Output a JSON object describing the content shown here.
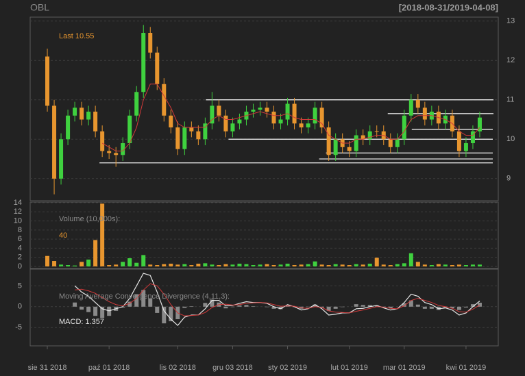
{
  "chart_data": {
    "type": "candlestick",
    "title": "OBL",
    "subtitle": "[2018-08-31/2019-04-08]",
    "annotation": "Last 10.55",
    "categories": [
      "sie 31 2018",
      null,
      null,
      null,
      null,
      null,
      null,
      null,
      null,
      "paź 01 2018",
      null,
      null,
      null,
      null,
      null,
      null,
      null,
      null,
      null,
      "lis 02 2018",
      null,
      null,
      null,
      null,
      null,
      null,
      null,
      "gru 03 2018",
      null,
      null,
      null,
      null,
      null,
      null,
      null,
      "sty 02 2019",
      null,
      null,
      null,
      null,
      null,
      null,
      null,
      null,
      "lut 01 2019",
      null,
      null,
      null,
      null,
      null,
      null,
      null,
      "mar 01 2019",
      null,
      null,
      null,
      null,
      null,
      null,
      null,
      null,
      "kwi 01 2019",
      null,
      null
    ],
    "xlim": [
      -2.5,
      65.7
    ],
    "open": [
      12.1,
      10.85,
      9.0,
      10.0,
      10.6,
      10.8,
      10.5,
      10.7,
      10.2,
      9.7,
      9.65,
      9.6,
      9.9,
      10.6,
      11.2,
      12.7,
      12.2,
      11.4,
      10.6,
      10.3,
      9.75,
      10.3,
      10.2,
      10.0,
      10.4,
      10.85,
      10.6,
      10.2,
      10.4,
      10.5,
      10.7,
      10.75,
      10.8,
      10.7,
      10.4,
      10.5,
      10.9,
      10.4,
      10.3,
      10.4,
      10.8,
      10.3,
      9.6,
      10.0,
      9.8,
      9.7,
      10.1,
      10.0,
      10.2,
      10.2,
      10.0,
      9.8,
      10.0,
      10.6,
      11.0,
      10.8,
      10.5,
      10.7,
      10.4,
      10.6,
      10.2,
      9.7,
      9.9,
      10.2
    ],
    "high": [
      12.3,
      11.0,
      10.15,
      10.75,
      10.95,
      10.95,
      10.85,
      10.85,
      10.35,
      9.85,
      9.8,
      10.05,
      10.75,
      11.35,
      12.9,
      12.85,
      12.35,
      11.55,
      10.75,
      10.45,
      10.45,
      10.45,
      10.35,
      10.55,
      11.2,
      11.0,
      10.75,
      10.55,
      10.65,
      10.85,
      10.9,
      10.95,
      10.95,
      10.85,
      10.65,
      11.05,
      11.05,
      10.55,
      10.55,
      10.95,
      10.95,
      10.45,
      10.15,
      10.15,
      9.95,
      10.25,
      10.25,
      10.35,
      10.35,
      10.35,
      10.15,
      10.15,
      10.75,
      11.15,
      11.15,
      10.95,
      10.85,
      10.85,
      10.75,
      10.75,
      10.35,
      10.05,
      10.35,
      10.7
    ],
    "low": [
      10.7,
      8.6,
      8.85,
      9.85,
      10.45,
      10.35,
      10.35,
      10.05,
      9.55,
      9.5,
      9.3,
      9.45,
      9.75,
      10.45,
      11.05,
      12.05,
      11.25,
      10.45,
      10.15,
      9.6,
      9.6,
      10.05,
      9.85,
      9.85,
      10.25,
      10.45,
      10.05,
      10.05,
      10.25,
      10.35,
      10.55,
      10.6,
      10.55,
      10.25,
      10.25,
      10.35,
      10.25,
      10.15,
      10.15,
      10.25,
      10.15,
      9.45,
      9.45,
      9.65,
      9.55,
      9.55,
      9.85,
      9.85,
      10.05,
      9.85,
      9.65,
      9.65,
      9.85,
      10.45,
      10.65,
      10.35,
      10.35,
      10.25,
      10.25,
      10.05,
      9.55,
      9.55,
      9.75,
      10.05
    ],
    "close": [
      10.85,
      9.0,
      10.0,
      10.6,
      10.8,
      10.5,
      10.7,
      10.2,
      9.7,
      9.65,
      9.6,
      9.9,
      10.6,
      11.2,
      12.7,
      12.2,
      11.4,
      10.6,
      10.3,
      9.75,
      10.3,
      10.2,
      10.0,
      10.4,
      10.85,
      10.6,
      10.2,
      10.4,
      10.5,
      10.7,
      10.75,
      10.8,
      10.7,
      10.4,
      10.5,
      10.9,
      10.4,
      10.3,
      10.4,
      10.8,
      10.3,
      9.6,
      10.0,
      9.8,
      9.7,
      10.1,
      10.0,
      10.2,
      10.2,
      10.0,
      9.8,
      10.0,
      10.6,
      11.0,
      10.8,
      10.5,
      10.7,
      10.4,
      10.6,
      10.2,
      9.7,
      9.9,
      10.2,
      10.55
    ],
    "up_color": "#3fd13f",
    "down_color": "#e8962f",
    "ylim": [
      8.44,
      13.1
    ],
    "yticks": [
      9,
      10,
      11,
      12,
      13
    ],
    "grid": true,
    "ma": {
      "color": "#d23a3a",
      "values": [
        null,
        null,
        null,
        null,
        null,
        null,
        null,
        null,
        9.9,
        9.8,
        9.7,
        9.7,
        9.9,
        10.3,
        11.0,
        11.4,
        11.4,
        11.1,
        10.8,
        10.4,
        10.3,
        10.3,
        10.3,
        10.3,
        10.5,
        10.6,
        10.5,
        10.5,
        10.55,
        10.6,
        10.65,
        10.7,
        10.65,
        10.6,
        10.6,
        10.65,
        10.55,
        10.5,
        10.5,
        10.5,
        10.4,
        10.1,
        10.0,
        9.9,
        9.9,
        10.0,
        10.0,
        10.05,
        10.1,
        10.1,
        10.0,
        10.0,
        10.2,
        10.5,
        10.6,
        10.6,
        10.6,
        10.55,
        10.5,
        10.4,
        10.2,
        10.1,
        10.1,
        10.3
      ]
    },
    "lines": [
      {
        "y": 11.0,
        "x": [
          23.1,
          65.0
        ]
      },
      {
        "y": 10.65,
        "x": [
          49.6,
          65.0
        ]
      },
      {
        "y": 10.25,
        "x": [
          53.1,
          64.9
        ]
      },
      {
        "y": 10.0,
        "x": [
          26.4,
          64.9
        ]
      },
      {
        "y": 9.65,
        "x": [
          40.6,
          64.9
        ]
      },
      {
        "y": 9.5,
        "x": [
          39.6,
          64.9
        ]
      },
      {
        "y": 9.4,
        "x": [
          7.6,
          64.9
        ]
      }
    ],
    "volume": {
      "title": "Volume (10,000s):",
      "last_label": "40",
      "values": [
        2.3,
        1.2,
        0.4,
        0.3,
        0.2,
        1.0,
        1.5,
        5.8,
        13.8,
        0.3,
        0.4,
        1.0,
        1.8,
        0.8,
        2.5,
        0.4,
        0.3,
        0.5,
        0.6,
        0.4,
        0.5,
        0.3,
        0.6,
        0.7,
        0.4,
        0.3,
        0.5,
        0.4,
        0.6,
        0.5,
        0.3,
        0.4,
        0.5,
        0.3,
        0.4,
        0.6,
        0.3,
        0.4,
        0.5,
        1.1,
        0.4,
        0.3,
        0.5,
        0.4,
        0.3,
        0.5,
        0.4,
        0.6,
        1.9,
        0.4,
        0.3,
        0.5,
        0.7,
        2.9,
        1.0,
        0.4,
        0.3,
        0.5,
        0.4,
        0.3,
        0.4,
        0.3,
        0.4,
        0.4
      ],
      "ylim": [
        -0.45,
        14.15
      ],
      "yticks": [
        0,
        2,
        4,
        6,
        8,
        10,
        12,
        14
      ]
    },
    "macd": {
      "title": "Moving Average Convergence Divergence (4,11,3):",
      "last_label": "MACD: 1.357",
      "line_color": "#e6e6e6",
      "signal_color": "#d23a3a",
      "histogram_color": "#8a8a8a",
      "values": [
        null,
        null,
        null,
        null,
        5.0,
        3.5,
        2.5,
        1.0,
        -0.5,
        -1.0,
        -0.5,
        0,
        2.0,
        5.0,
        8.0,
        7.5,
        3.5,
        -1.0,
        -3.0,
        -4.5,
        -2.5,
        -2.0,
        -2.0,
        -0.5,
        1.5,
        1.5,
        0.2,
        0.3,
        0.8,
        1.2,
        1.0,
        1.0,
        0.8,
        0,
        -0.5,
        0.5,
        0,
        -0.8,
        -0.5,
        0.5,
        -0.5,
        -2.0,
        -1.8,
        -1.5,
        -1.5,
        -0.5,
        -0.4,
        0,
        0.3,
        -0.3,
        -0.8,
        -0.5,
        1.0,
        3.0,
        2.5,
        1.0,
        0.5,
        -0.5,
        -0.3,
        -0.8,
        -2.0,
        -1.5,
        0,
        1.357
      ],
      "signal": [
        null,
        null,
        null,
        null,
        4.0,
        4.2,
        3.8,
        3.2,
        2.2,
        1.2,
        0.5,
        0.2,
        0.8,
        2.0,
        4.0,
        5.5,
        5.0,
        3.0,
        0.5,
        -1.5,
        -2.2,
        -2.1,
        -2.0,
        -1.4,
        -0.2,
        0.5,
        0.6,
        0.4,
        0.5,
        0.8,
        0.9,
        1.0,
        0.9,
        0.5,
        0.1,
        0.2,
        0.1,
        -0.3,
        -0.4,
        0,
        -0.2,
        -1.0,
        -1.3,
        -1.4,
        -1.5,
        -1.1,
        -0.8,
        -0.4,
        0,
        -0.1,
        -0.4,
        -0.5,
        0.2,
        1.5,
        2.0,
        1.5,
        1.0,
        0.3,
        0,
        -0.4,
        -1.2,
        -1.3,
        -0.6,
        0.4
      ],
      "histogram": [
        null,
        null,
        null,
        null,
        1.0,
        -0.7,
        -1.3,
        -2.2,
        -2.7,
        -2.2,
        -1.0,
        -0.2,
        1.2,
        3.0,
        4.0,
        2.0,
        -1.5,
        -4.0,
        -3.5,
        -3.0,
        -0.3,
        0.1,
        0,
        0.9,
        1.7,
        1.0,
        -0.4,
        -0.1,
        0.3,
        0.4,
        0.1,
        0,
        -0.1,
        -0.5,
        -0.6,
        0.3,
        -0.1,
        -0.5,
        -0.1,
        0.5,
        -0.3,
        -1.0,
        -0.5,
        -0.1,
        0,
        0.6,
        0.4,
        0.4,
        0.3,
        -0.2,
        -0.4,
        0,
        0.8,
        1.5,
        0.5,
        -0.5,
        -0.5,
        -0.8,
        -0.3,
        -0.4,
        -0.8,
        -0.2,
        0.6,
        0.957
      ],
      "ylim": [
        -9.4,
        9.0
      ],
      "yticks": [
        -5,
        0,
        5
      ]
    }
  }
}
